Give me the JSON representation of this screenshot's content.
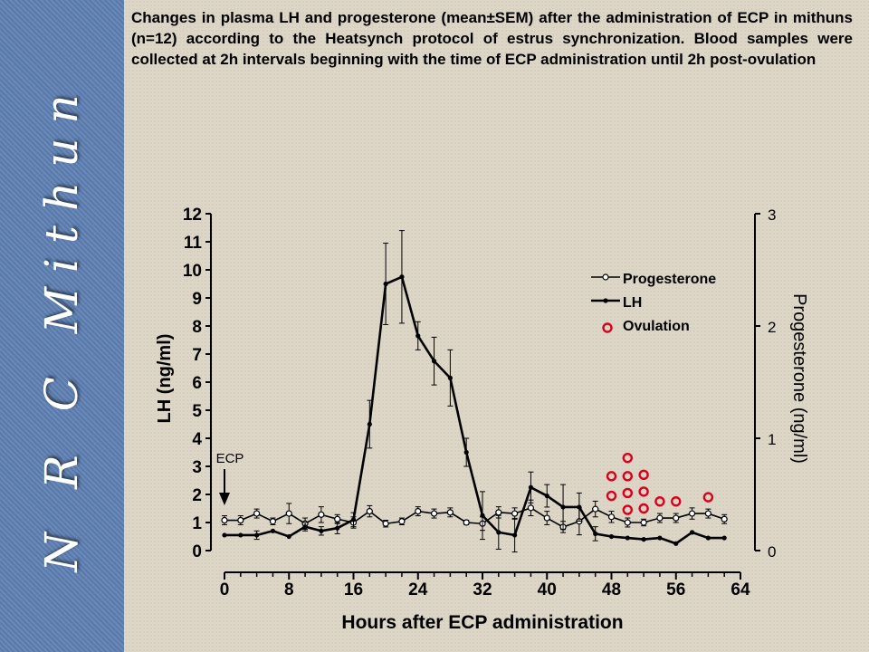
{
  "sidebar": {
    "title": "N R C Mithun"
  },
  "caption": "Changes in plasma LH and progesterone (mean±SEM) after the administration of ECP in mithuns (n=12) according to the Heatsynch protocol of estrus synchronization. Blood samples were collected at 2h intervals beginning with the time of ECP administration until 2h post-ovulation",
  "chart_data": {
    "type": "line",
    "xlabel": "Hours after ECP administration",
    "ylabel": "LH (ng/ml)",
    "y2label": "Progesterone (ng/ml)",
    "xlim": [
      0,
      64
    ],
    "ylim": [
      0,
      12
    ],
    "y2lim": [
      0,
      3
    ],
    "xticks": [
      0,
      8,
      16,
      24,
      32,
      40,
      48,
      56,
      64
    ],
    "yticks": [
      0,
      1,
      2,
      3,
      4,
      5,
      6,
      7,
      8,
      9,
      10,
      11,
      12
    ],
    "y2ticks": [
      0,
      1,
      2,
      3
    ],
    "legend_position": "top-right",
    "grid": false,
    "annotation": {
      "label": "ECP",
      "x": 0
    },
    "series": [
      {
        "name": "Progesterone",
        "axis": "right",
        "marker": "open-circle",
        "x": [
          0,
          2,
          4,
          6,
          8,
          10,
          12,
          14,
          16,
          18,
          20,
          22,
          24,
          26,
          28,
          30,
          32,
          34,
          36,
          38,
          40,
          42,
          44,
          46,
          48,
          50,
          52,
          54,
          56,
          58,
          60,
          62
        ],
        "values": [
          0.27,
          0.27,
          0.33,
          0.26,
          0.33,
          0.24,
          0.32,
          0.28,
          0.25,
          0.35,
          0.24,
          0.26,
          0.35,
          0.33,
          0.34,
          0.25,
          0.24,
          0.34,
          0.33,
          0.38,
          0.29,
          0.21,
          0.26,
          0.37,
          0.3,
          0.25,
          0.25,
          0.29,
          0.29,
          0.33,
          0.33,
          0.28
        ],
        "errors": [
          0.04,
          0.04,
          0.04,
          0.03,
          0.09,
          0.05,
          0.07,
          0.04,
          0.05,
          0.05,
          0.03,
          0.03,
          0.04,
          0.04,
          0.04,
          0.02,
          0.06,
          0.05,
          0.05,
          0.07,
          0.06,
          0.05,
          0.12,
          0.07,
          0.05,
          0.04,
          0.03,
          0.04,
          0.04,
          0.05,
          0.04,
          0.04
        ]
      },
      {
        "name": "LH",
        "axis": "left",
        "marker": "filled-dot",
        "x": [
          0,
          2,
          4,
          6,
          8,
          10,
          12,
          14,
          16,
          18,
          20,
          22,
          24,
          26,
          28,
          30,
          32,
          34,
          36,
          38,
          40,
          42,
          44,
          46,
          48,
          50,
          52,
          54,
          56,
          58,
          60,
          62
        ],
        "values": [
          0.55,
          0.55,
          0.55,
          0.7,
          0.5,
          0.85,
          0.7,
          0.8,
          1.1,
          4.5,
          9.5,
          9.75,
          7.65,
          6.75,
          6.15,
          3.5,
          1.25,
          0.65,
          0.55,
          2.25,
          1.95,
          1.55,
          1.55,
          0.6,
          0.5,
          0.45,
          0.4,
          0.45,
          0.25,
          0.65,
          0.45,
          0.45
        ],
        "errors": [
          0,
          0,
          0.15,
          0,
          0,
          0.15,
          0.15,
          0.2,
          0.25,
          0.85,
          1.45,
          1.65,
          0.5,
          0.85,
          1.0,
          0.5,
          0.85,
          0.6,
          0.6,
          0.55,
          0.4,
          0.8,
          0.5,
          0.25,
          0,
          0,
          0,
          0,
          0,
          0,
          0,
          0
        ]
      },
      {
        "name": "Ovulation",
        "marker": "open-circle-red",
        "color": "#d9001b",
        "points": [
          {
            "x": 50,
            "y": 3.3
          },
          {
            "x": 48,
            "y": 2.65
          },
          {
            "x": 50,
            "y": 2.65
          },
          {
            "x": 52,
            "y": 2.7
          },
          {
            "x": 48,
            "y": 1.95
          },
          {
            "x": 50,
            "y": 2.05
          },
          {
            "x": 52,
            "y": 2.1
          },
          {
            "x": 50,
            "y": 1.45
          },
          {
            "x": 52,
            "y": 1.5
          },
          {
            "x": 54,
            "y": 1.75
          },
          {
            "x": 56,
            "y": 1.75
          },
          {
            "x": 60,
            "y": 1.9
          }
        ]
      }
    ]
  }
}
